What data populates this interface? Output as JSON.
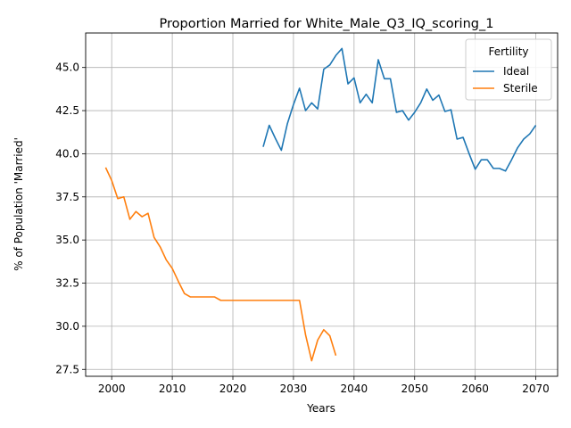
{
  "chart_data": {
    "type": "line",
    "title": "Proportion Married for White_Male_Q3_IQ_scoring_1",
    "xlabel": "Years",
    "ylabel": "% of Population 'Married'",
    "xlim": [
      1995.7,
      2073.6
    ],
    "ylim": [
      27.1,
      47.0
    ],
    "xticks": [
      2000,
      2010,
      2020,
      2030,
      2040,
      2050,
      2060,
      2070
    ],
    "yticks": [
      27.5,
      30.0,
      32.5,
      35.0,
      37.5,
      40.0,
      42.5,
      45.0
    ],
    "xtick_labels": [
      "2000",
      "2010",
      "2020",
      "2030",
      "2040",
      "2050",
      "2060",
      "2070"
    ],
    "ytick_labels": [
      "27.5",
      "30.0",
      "32.5",
      "35.0",
      "37.5",
      "40.0",
      "42.5",
      "45.0"
    ],
    "grid": true,
    "legend": {
      "title": "Fertility",
      "position": "top-right"
    },
    "series": [
      {
        "name": "Ideal",
        "color": "#1f77b4",
        "x": [
          2025,
          2026,
          2027,
          2028,
          2029,
          2030,
          2031,
          2032,
          2033,
          2034,
          2035,
          2036,
          2037,
          2038,
          2039,
          2040,
          2041,
          2042,
          2043,
          2044,
          2045,
          2046,
          2047,
          2048,
          2049,
          2050,
          2051,
          2052,
          2053,
          2054,
          2055,
          2056,
          2057,
          2058,
          2059,
          2060,
          2061,
          2062,
          2063,
          2064,
          2065,
          2066,
          2067,
          2068,
          2069,
          2070
        ],
        "y": [
          40.4,
          41.65,
          40.9,
          40.2,
          41.75,
          42.85,
          43.8,
          42.5,
          42.95,
          42.6,
          44.9,
          45.15,
          45.7,
          46.1,
          44.05,
          44.4,
          42.95,
          43.45,
          42.95,
          45.45,
          44.35,
          44.35,
          42.4,
          42.5,
          41.95,
          42.4,
          42.95,
          43.75,
          43.1,
          43.4,
          42.45,
          42.55,
          40.85,
          40.95,
          40.0,
          39.1,
          39.65,
          39.65,
          39.15,
          39.15,
          39.0,
          39.65,
          40.35,
          40.85,
          41.15,
          41.65
        ]
      },
      {
        "name": "Sterile",
        "color": "#ff7f0e",
        "x": [
          1999,
          2000,
          2001,
          2002,
          2003,
          2004,
          2005,
          2006,
          2007,
          2008,
          2009,
          2010,
          2011,
          2012,
          2013,
          2014,
          2015,
          2016,
          2017,
          2018,
          2019,
          2020,
          2021,
          2022,
          2023,
          2024,
          2025,
          2026,
          2027,
          2028,
          2029,
          2030,
          2031,
          2032,
          2033,
          2034,
          2035,
          2036,
          2037
        ],
        "y": [
          39.2,
          38.45,
          37.4,
          37.5,
          36.2,
          36.65,
          36.35,
          36.55,
          35.15,
          34.6,
          33.85,
          33.35,
          32.6,
          31.9,
          31.7,
          31.7,
          31.7,
          31.7,
          31.7,
          31.5,
          31.5,
          31.5,
          31.5,
          31.5,
          31.5,
          31.5,
          31.5,
          31.5,
          31.5,
          31.5,
          31.5,
          31.5,
          31.5,
          29.5,
          28.0,
          29.2,
          29.8,
          29.45,
          28.3
        ]
      }
    ]
  }
}
